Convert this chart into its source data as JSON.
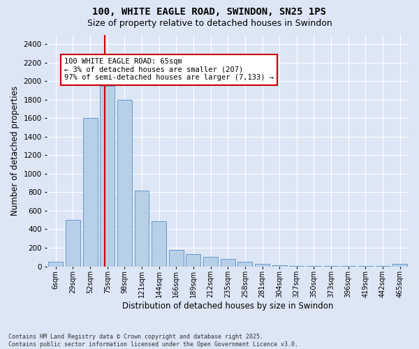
{
  "title": "100, WHITE EAGLE ROAD, SWINDON, SN25 1PS",
  "subtitle": "Size of property relative to detached houses in Swindon",
  "xlabel": "Distribution of detached houses by size in Swindon",
  "ylabel": "Number of detached properties",
  "annotation_line1": "100 WHITE EAGLE ROAD: 65sqm",
  "annotation_line2": "← 3% of detached houses are smaller (207)",
  "annotation_line3": "97% of semi-detached houses are larger (7,133) →",
  "footer_line1": "Contains HM Land Registry data © Crown copyright and database right 2025.",
  "footer_line2": "Contains public sector information licensed under the Open Government Licence v3.0.",
  "categories": [
    "6sqm",
    "29sqm",
    "52sqm",
    "75sqm",
    "98sqm",
    "121sqm",
    "144sqm",
    "166sqm",
    "189sqm",
    "212sqm",
    "235sqm",
    "258sqm",
    "281sqm",
    "304sqm",
    "327sqm",
    "350sqm",
    "373sqm",
    "396sqm",
    "419sqm",
    "442sqm",
    "465sqm"
  ],
  "bar_heights": [
    50,
    500,
    1600,
    1950,
    1800,
    820,
    490,
    175,
    135,
    100,
    80,
    50,
    25,
    10,
    5,
    2,
    2,
    2,
    2,
    2,
    25
  ],
  "bar_color": "#b8cfe8",
  "bar_edgecolor": "#6699cc",
  "vline_x_index": 2.83,
  "vline_color": "#cc0000",
  "annotation_box_color": "#cc0000",
  "background_color": "#dce6f5",
  "grid_color": "#ffffff",
  "ylim": [
    0,
    2500
  ],
  "yticks": [
    0,
    200,
    400,
    600,
    800,
    1000,
    1200,
    1400,
    1600,
    1800,
    2000,
    2200,
    2400
  ],
  "title_fontsize": 10,
  "subtitle_fontsize": 9,
  "axis_label_fontsize": 8.5,
  "tick_fontsize": 7,
  "annotation_fontsize": 7.5,
  "fig_bg_color": "#dce6f5"
}
